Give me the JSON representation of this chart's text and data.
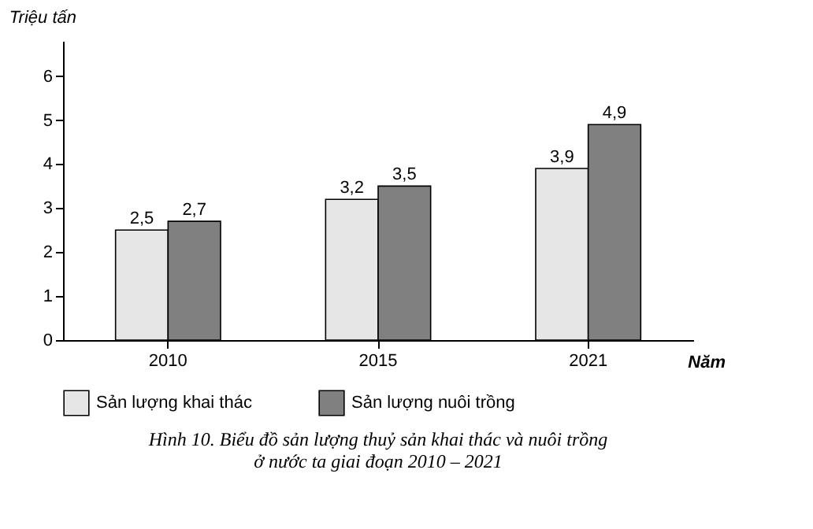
{
  "chart_data": {
    "type": "bar",
    "title": "Hình 10. Biểu đồ sản lượng thuỷ sản khai thác và nuôi trồng\nở nước ta giai đoạn 2010 – 2021",
    "xlabel": "Năm",
    "ylabel": "Triệu tấn",
    "categories": [
      "2010",
      "2015",
      "2021"
    ],
    "series": [
      {
        "name": "Sản lượng khai thác",
        "color": "#e6e6e6",
        "values": [
          2.5,
          3.2,
          3.9
        ],
        "value_labels": [
          "2,5",
          "3,2",
          "3,9"
        ]
      },
      {
        "name": "Sản lượng nuôi trồng",
        "color": "#808080",
        "values": [
          2.7,
          3.5,
          4.9
        ],
        "value_labels": [
          "2,7",
          "3,5",
          "4,9"
        ]
      }
    ],
    "ylim": [
      0,
      6.8
    ],
    "yticks": [
      0,
      1,
      2,
      3,
      4,
      5,
      6
    ],
    "grid": false,
    "legend": "bottom"
  }
}
